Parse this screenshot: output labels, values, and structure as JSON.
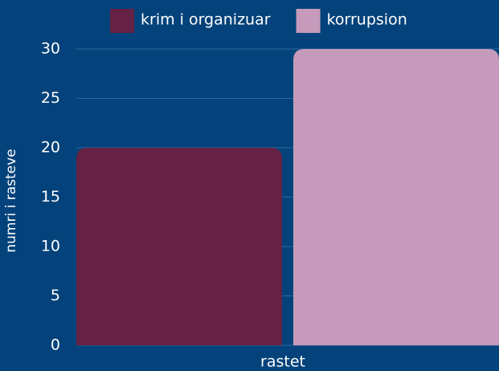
{
  "chart_data": {
    "type": "bar",
    "categories": [
      "rastet"
    ],
    "xlabel": "rastet",
    "ylabel": "numri i rasteve",
    "series": [
      {
        "name": "krim i organizuar",
        "color": "#662244",
        "values": [
          20
        ]
      },
      {
        "name": "korrupsion",
        "color": "#c69aba",
        "values": [
          30
        ]
      }
    ],
    "ylim": [
      0,
      30
    ],
    "yticks": [
      0,
      5,
      10,
      15,
      20,
      25,
      30
    ],
    "grid": true,
    "legend": "top"
  }
}
